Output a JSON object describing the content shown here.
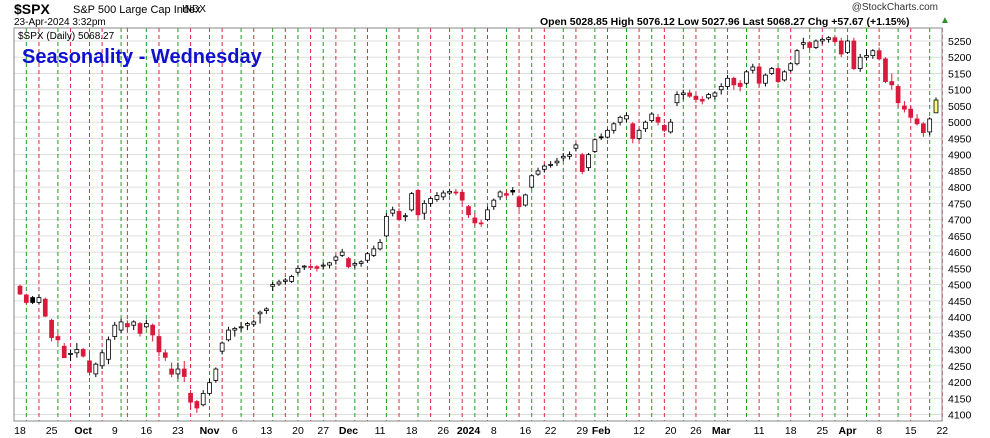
{
  "header": {
    "symbol": "$SPX",
    "description": "S&P 500 Large Cap Index",
    "exchange": "INDX",
    "datetime": "23-Apr-2024 3:32pm",
    "ohlc_text": "Open 5028.85  High 5076.12  Low 5027.96  Last 5068.27  Chg +57.67 (+1.15%)",
    "credit": "@StockCharts.com",
    "legend": "$SPX (Daily) 5068.27",
    "change_arrow": "▲"
  },
  "colors": {
    "up_candle": "#ffffff",
    "down_candle": "#d81b3c",
    "outline": "#000000",
    "red_line": "#e0283c",
    "green_line": "#1f9a1f",
    "grid": "#dddddd",
    "title": "#1010d0",
    "highlight": "#ffff80"
  },
  "chart_data": {
    "type": "candlestick",
    "title": "Seasonality - Wednesday",
    "xlabel": "",
    "ylabel": "",
    "ylim": [
      4080,
      5290
    ],
    "y_ticks": [
      4100,
      4150,
      4200,
      4250,
      4300,
      4350,
      4400,
      4450,
      4500,
      4550,
      4600,
      4650,
      4700,
      4750,
      4800,
      4850,
      4900,
      4950,
      5000,
      5050,
      5100,
      5150,
      5200,
      5250
    ],
    "x_tick_labels": [
      {
        "label": "18",
        "day": 0
      },
      {
        "label": "25",
        "day": 5
      },
      {
        "label": "Oct",
        "day": 10
      },
      {
        "label": "9",
        "day": 15
      },
      {
        "label": "16",
        "day": 20
      },
      {
        "label": "23",
        "day": 25
      },
      {
        "label": "Nov",
        "day": 30
      },
      {
        "label": "6",
        "day": 34
      },
      {
        "label": "13",
        "day": 39
      },
      {
        "label": "20",
        "day": 44
      },
      {
        "label": "27",
        "day": 48
      },
      {
        "label": "Dec",
        "day": 52
      },
      {
        "label": "11",
        "day": 57
      },
      {
        "label": "18",
        "day": 62
      },
      {
        "label": "26",
        "day": 67
      },
      {
        "label": "2024",
        "day": 71
      },
      {
        "label": "8",
        "day": 75
      },
      {
        "label": "16",
        "day": 80
      },
      {
        "label": "22",
        "day": 84
      },
      {
        "label": "29",
        "day": 89
      },
      {
        "label": "Feb",
        "day": 92
      },
      {
        "label": "12",
        "day": 98
      },
      {
        "label": "20",
        "day": 103
      },
      {
        "label": "26",
        "day": 107
      },
      {
        "label": "Mar",
        "day": 111
      },
      {
        "label": "11",
        "day": 117
      },
      {
        "label": "18",
        "day": 122
      },
      {
        "label": "25",
        "day": 127
      },
      {
        "label": "Apr",
        "day": 131
      },
      {
        "label": "8",
        "day": 136
      },
      {
        "label": "15",
        "day": 141
      },
      {
        "label": "22",
        "day": 146
      }
    ],
    "red_vertical_lines": [
      3,
      8,
      13,
      17,
      22,
      27,
      32,
      37,
      42,
      46,
      50,
      55,
      60,
      65,
      70,
      74,
      79,
      83,
      88,
      93,
      98,
      102,
      107,
      112,
      117,
      122,
      127,
      131,
      136,
      141,
      146
    ],
    "green_vertical_lines": [
      1,
      6,
      11,
      16,
      20,
      25,
      30,
      35,
      40,
      44,
      48,
      53,
      58,
      63,
      68,
      72,
      77,
      81,
      86,
      91,
      96,
      100,
      105,
      110,
      115,
      120,
      125,
      129,
      134,
      139,
      144
    ],
    "series": [
      {
        "ohlc": [
          [
            4495,
            4500,
            4468,
            4471
          ],
          [
            4468,
            4472,
            4440,
            4445
          ],
          [
            4460,
            4465,
            4440,
            4445
          ],
          [
            4445,
            4470,
            4440,
            4460
          ],
          [
            4455,
            4460,
            4400,
            4403
          ],
          [
            4390,
            4395,
            4325,
            4337
          ],
          [
            4340,
            4350,
            4320,
            4330
          ],
          [
            4310,
            4320,
            4275,
            4275
          ],
          [
            4285,
            4300,
            4265,
            4288
          ],
          [
            4290,
            4320,
            4275,
            4300
          ],
          [
            4300,
            4305,
            4275,
            4280
          ],
          [
            4265,
            4290,
            4220,
            4230
          ],
          [
            4225,
            4260,
            4215,
            4255
          ],
          [
            4250,
            4300,
            4240,
            4290
          ],
          [
            4270,
            4340,
            4255,
            4330
          ],
          [
            4340,
            4385,
            4330,
            4375
          ],
          [
            4360,
            4395,
            4350,
            4385
          ],
          [
            4380,
            4390,
            4355,
            4370
          ],
          [
            4375,
            4390,
            4360,
            4385
          ],
          [
            4380,
            4385,
            4340,
            4350
          ],
          [
            4370,
            4392,
            4365,
            4380
          ],
          [
            4375,
            4380,
            4325,
            4345
          ],
          [
            4340,
            4350,
            4280,
            4293
          ],
          [
            4290,
            4300,
            4265,
            4276
          ],
          [
            4240,
            4260,
            4215,
            4224
          ],
          [
            4225,
            4260,
            4210,
            4240
          ],
          [
            4240,
            4265,
            4200,
            4217
          ],
          [
            4165,
            4175,
            4115,
            4138
          ],
          [
            4140,
            4145,
            4105,
            4120
          ],
          [
            4130,
            4175,
            4125,
            4165
          ],
          [
            4165,
            4210,
            4160,
            4198
          ],
          [
            4205,
            4245,
            4198,
            4240
          ],
          [
            4295,
            4325,
            4285,
            4320
          ],
          [
            4330,
            4370,
            4325,
            4360
          ],
          [
            4360,
            4370,
            4340,
            4365
          ],
          [
            4370,
            4385,
            4355,
            4370
          ],
          [
            4375,
            4385,
            4360,
            4380
          ],
          [
            4378,
            4392,
            4370,
            4385
          ],
          [
            4410,
            4420,
            4380,
            4415
          ],
          [
            4420,
            4430,
            4410,
            4425
          ],
          [
            4495,
            4508,
            4480,
            4500
          ],
          [
            4502,
            4515,
            4496,
            4508
          ],
          [
            4510,
            4520,
            4500,
            4514
          ],
          [
            4510,
            4530,
            4505,
            4525
          ],
          [
            4538,
            4560,
            4530,
            4550
          ],
          [
            4555,
            4560,
            4545,
            4557
          ],
          [
            4556,
            4565,
            4545,
            4555
          ],
          [
            4555,
            4560,
            4540,
            4550
          ],
          [
            4557,
            4568,
            4548,
            4560
          ],
          [
            4560,
            4570,
            4550,
            4567
          ],
          [
            4575,
            4590,
            4562,
            4585
          ],
          [
            4590,
            4610,
            4585,
            4600
          ],
          [
            4580,
            4585,
            4550,
            4555
          ],
          [
            4560,
            4570,
            4550,
            4565
          ],
          [
            4565,
            4575,
            4555,
            4570
          ],
          [
            4575,
            4600,
            4568,
            4595
          ],
          [
            4590,
            4620,
            4585,
            4610
          ],
          [
            4610,
            4640,
            4605,
            4630
          ],
          [
            4650,
            4720,
            4645,
            4710
          ],
          [
            4720,
            4740,
            4710,
            4730
          ],
          [
            4725,
            4735,
            4695,
            4700
          ],
          [
            4710,
            4720,
            4695,
            4712
          ],
          [
            4730,
            4785,
            4725,
            4780
          ],
          [
            4790,
            4795,
            4700,
            4715
          ],
          [
            4720,
            4760,
            4700,
            4750
          ],
          [
            4750,
            4770,
            4740,
            4765
          ],
          [
            4762,
            4785,
            4755,
            4774
          ],
          [
            4770,
            4790,
            4760,
            4782
          ],
          [
            4782,
            4795,
            4775,
            4787
          ],
          [
            4785,
            4795,
            4775,
            4783
          ],
          [
            4784,
            4790,
            4750,
            4760
          ],
          [
            4740,
            4745,
            4705,
            4715
          ],
          [
            4705,
            4720,
            4680,
            4690
          ],
          [
            4690,
            4700,
            4678,
            4688
          ],
          [
            4700,
            4740,
            4695,
            4730
          ],
          [
            4740,
            4765,
            4730,
            4760
          ],
          [
            4770,
            4790,
            4760,
            4785
          ],
          [
            4780,
            4790,
            4765,
            4775
          ],
          [
            4790,
            4800,
            4775,
            4785
          ],
          [
            4770,
            4775,
            4730,
            4740
          ],
          [
            4745,
            4780,
            4740,
            4776
          ],
          [
            4800,
            4840,
            4795,
            4835
          ],
          [
            4840,
            4860,
            4835,
            4850
          ],
          [
            4855,
            4870,
            4845,
            4865
          ],
          [
            4868,
            4880,
            4860,
            4870
          ],
          [
            4875,
            4890,
            4865,
            4880
          ],
          [
            4890,
            4905,
            4880,
            4895
          ],
          [
            4895,
            4910,
            4885,
            4900
          ],
          [
            4920,
            4935,
            4910,
            4930
          ],
          [
            4900,
            4905,
            4840,
            4848
          ],
          [
            4860,
            4905,
            4850,
            4900
          ],
          [
            4910,
            4950,
            4905,
            4946
          ],
          [
            4955,
            4965,
            4945,
            4952
          ],
          [
            4954,
            4980,
            4950,
            4975
          ],
          [
            4975,
            5000,
            4965,
            4995
          ],
          [
            5000,
            5020,
            4990,
            5015
          ],
          [
            5010,
            5030,
            5000,
            5020
          ],
          [
            4995,
            5000,
            4935,
            4950
          ],
          [
            4950,
            4980,
            4945,
            4975
          ],
          [
            4980,
            5005,
            4970,
            5000
          ],
          [
            5005,
            5030,
            5000,
            5025
          ],
          [
            5015,
            5025,
            4990,
            5000
          ],
          [
            4990,
            4995,
            4970,
            4975
          ],
          [
            4970,
            5010,
            4965,
            5000
          ],
          [
            5060,
            5095,
            5050,
            5085
          ],
          [
            5085,
            5100,
            5070,
            5090
          ],
          [
            5090,
            5100,
            5075,
            5080
          ],
          [
            5080,
            5085,
            5060,
            5070
          ],
          [
            5070,
            5080,
            5055,
            5065
          ],
          [
            5075,
            5090,
            5070,
            5085
          ],
          [
            5080,
            5095,
            5070,
            5090
          ],
          [
            5100,
            5120,
            5085,
            5110
          ],
          [
            5110,
            5145,
            5100,
            5135
          ],
          [
            5135,
            5140,
            5100,
            5115
          ],
          [
            5120,
            5130,
            5095,
            5110
          ],
          [
            5120,
            5160,
            5115,
            5155
          ],
          [
            5160,
            5180,
            5150,
            5170
          ],
          [
            5170,
            5180,
            5110,
            5120
          ],
          [
            5120,
            5150,
            5110,
            5145
          ],
          [
            5150,
            5170,
            5145,
            5165
          ],
          [
            5165,
            5170,
            5120,
            5125
          ],
          [
            5130,
            5160,
            5125,
            5155
          ],
          [
            5160,
            5185,
            5155,
            5180
          ],
          [
            5180,
            5225,
            5175,
            5220
          ],
          [
            5240,
            5260,
            5225,
            5245
          ],
          [
            5245,
            5250,
            5225,
            5230
          ],
          [
            5230,
            5255,
            5225,
            5250
          ],
          [
            5250,
            5260,
            5240,
            5255
          ],
          [
            5255,
            5265,
            5245,
            5260
          ],
          [
            5260,
            5265,
            5240,
            5248
          ],
          [
            5250,
            5260,
            5200,
            5210
          ],
          [
            5215,
            5255,
            5210,
            5250
          ],
          [
            5250,
            5260,
            5160,
            5165
          ],
          [
            5165,
            5210,
            5155,
            5200
          ],
          [
            5200,
            5225,
            5190,
            5205
          ],
          [
            5205,
            5225,
            5195,
            5220
          ],
          [
            5220,
            5230,
            5190,
            5195
          ],
          [
            5195,
            5200,
            5120,
            5125
          ],
          [
            5125,
            5150,
            5100,
            5115
          ],
          [
            5110,
            5115,
            5045,
            5060
          ],
          [
            5050,
            5065,
            5030,
            5040
          ],
          [
            5040,
            5050,
            5010,
            5015
          ],
          [
            5010,
            5025,
            4990,
            4995
          ],
          [
            4995,
            5000,
            4955,
            4968
          ],
          [
            4970,
            5015,
            4960,
            5010
          ],
          [
            5028.85,
            5076.12,
            5027.96,
            5068.27
          ]
        ]
      }
    ]
  }
}
